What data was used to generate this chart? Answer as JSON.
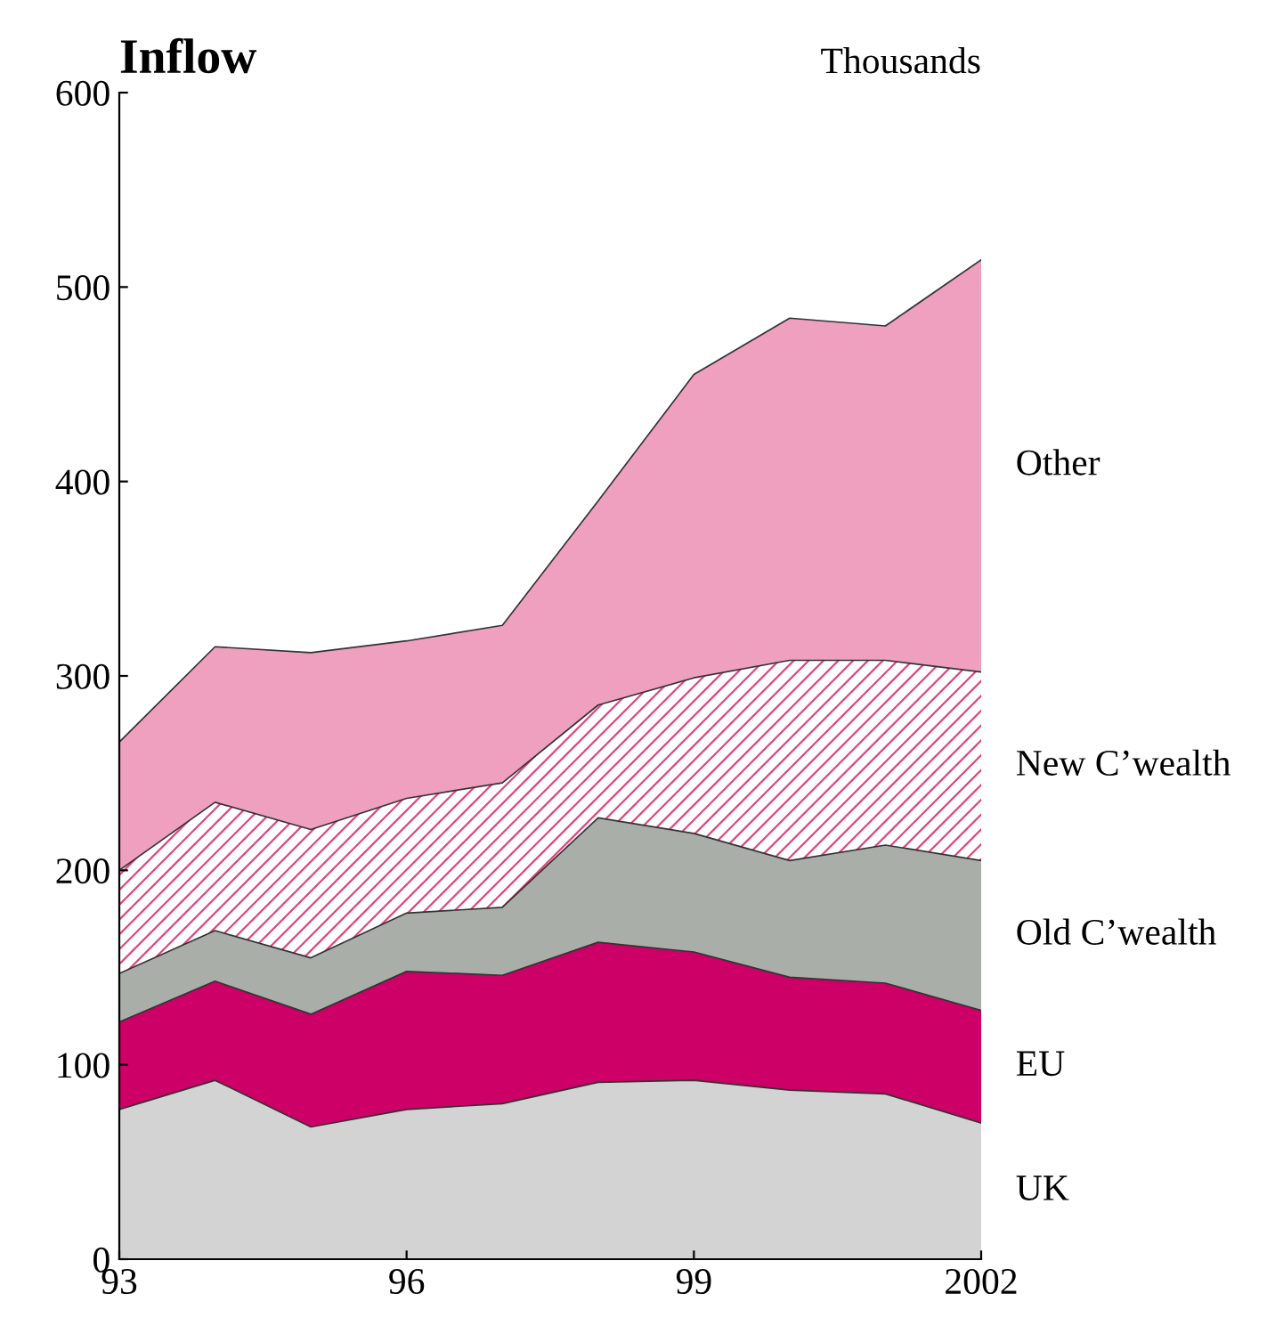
{
  "chart_data": {
    "type": "area",
    "stacked": true,
    "title": "Inflow",
    "ylabel": "Thousands",
    "x": [
      1993,
      1994,
      1995,
      1996,
      1997,
      1998,
      1999,
      2000,
      2001,
      2002
    ],
    "series": [
      {
        "name": "UK",
        "color": "#d3d3d3",
        "values": [
          77,
          92,
          68,
          77,
          80,
          91,
          92,
          87,
          85,
          70
        ]
      },
      {
        "name": "EU",
        "color": "#cc0066",
        "values": [
          45,
          51,
          58,
          71,
          66,
          72,
          66,
          58,
          57,
          58
        ]
      },
      {
        "name": "Old C’wealth",
        "color": "#a9aea9",
        "values": [
          25,
          26,
          29,
          30,
          35,
          64,
          61,
          60,
          71,
          77
        ]
      },
      {
        "name": "New C’wealth",
        "color": "#e0457f",
        "values": [
          53,
          66,
          66,
          59,
          64,
          58,
          80,
          103,
          95,
          97
        ]
      },
      {
        "name": "Other",
        "color": "#eea0be",
        "values": [
          66,
          80,
          91,
          81,
          81,
          105,
          156,
          176,
          172,
          212
        ]
      }
    ],
    "xlim": [
      1993,
      2002
    ],
    "xticks": [
      {
        "value": 1993,
        "label": "93"
      },
      {
        "value": 1996,
        "label": "96"
      },
      {
        "value": 1999,
        "label": "99"
      },
      2002
    ],
    "ylim": [
      0,
      600
    ],
    "yticks": [
      0,
      100,
      200,
      300,
      400,
      500,
      600
    ],
    "grid": false,
    "legend": "right"
  }
}
